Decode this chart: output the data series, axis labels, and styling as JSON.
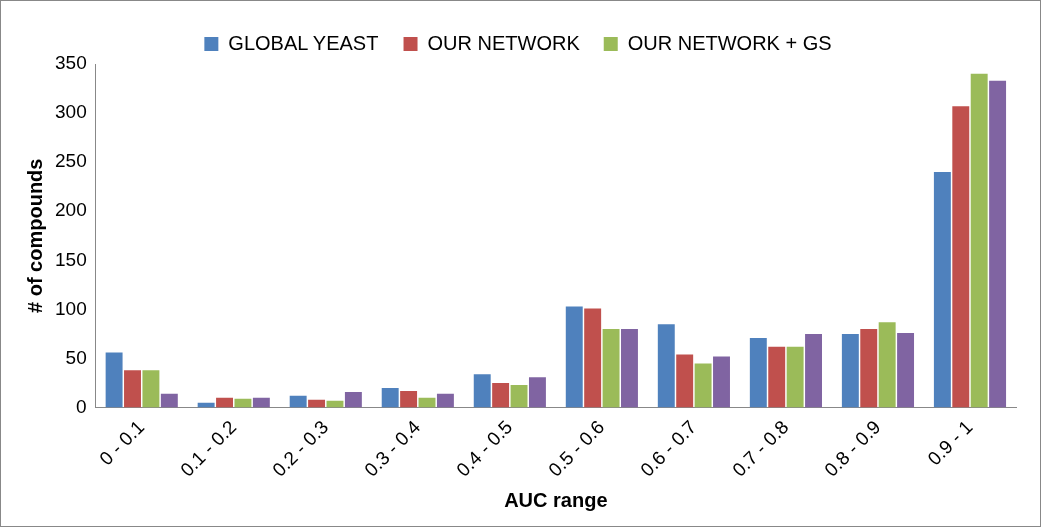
{
  "chart_data": {
    "type": "bar",
    "xlabel": "AUC range",
    "ylabel": "# of compounds",
    "categories": [
      "0 - 0.1",
      "0.1 - 0.2",
      "0.2 - 0.3",
      "0.3 - 0.4",
      "0.4 - 0.5",
      "0.5 - 0.6",
      "0.6 - 0.7",
      "0.7 - 0.8",
      "0.8 - 0.9",
      "0.9 - 1"
    ],
    "series": [
      {
        "name": "GLOBAL YEAST",
        "color": "#4f81bd",
        "values": [
          56,
          5,
          12,
          20,
          34,
          103,
          85,
          71,
          75,
          240
        ]
      },
      {
        "name": "OUR NETWORK",
        "color": "#c0504d",
        "values": [
          38,
          10,
          8,
          17,
          25,
          101,
          54,
          62,
          80,
          307
        ]
      },
      {
        "name": "OUR NETWORK + GS",
        "color": "#9bbb59",
        "values": [
          38,
          9,
          7,
          10,
          23,
          80,
          45,
          62,
          87,
          340
        ]
      },
      {
        "color": "#8064a2",
        "values": [
          14,
          10,
          16,
          14,
          31,
          80,
          52,
          75,
          76,
          333
        ]
      }
    ],
    "ylim": [
      0,
      350
    ],
    "yticks": [
      0,
      50,
      100,
      150,
      200,
      250,
      300,
      350
    ],
    "grid": false,
    "legend": "top"
  }
}
